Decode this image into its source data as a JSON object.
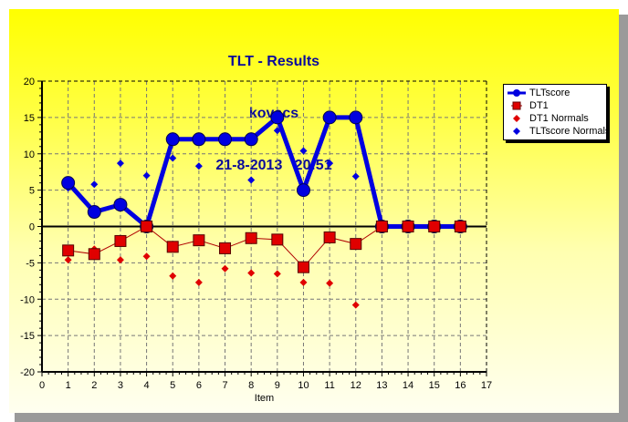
{
  "chart_data": {
    "type": "line",
    "title": "TLT - Results",
    "subtitle_lines": [
      "kovacs",
      "21-8-2013   20:51"
    ],
    "xlabel": "Item",
    "ylabel": "",
    "xlim": [
      0,
      17
    ],
    "ylim": [
      -20,
      20
    ],
    "x_ticks": [
      0,
      1,
      2,
      3,
      4,
      5,
      6,
      7,
      8,
      9,
      10,
      11,
      12,
      13,
      14,
      15,
      16,
      17
    ],
    "y_ticks": [
      20,
      15,
      10,
      5,
      0,
      -5,
      -10,
      -15,
      -20
    ],
    "grid": true,
    "legend_position": "right",
    "x": [
      1,
      2,
      3,
      4,
      5,
      6,
      7,
      8,
      9,
      10,
      11,
      12,
      13,
      14,
      15,
      16
    ],
    "series": [
      {
        "name": "TLTscore",
        "style": "line+circle",
        "color": "#0000e0",
        "values": [
          6,
          2,
          3,
          0,
          12,
          12,
          12,
          12,
          15,
          5,
          15,
          15,
          0,
          0,
          0,
          0
        ]
      },
      {
        "name": "DT1",
        "style": "line+square",
        "color": "#e00000",
        "values": [
          -3.3,
          -3.8,
          -2.0,
          0,
          -2.8,
          -1.9,
          -3.0,
          -1.6,
          -1.8,
          -5.6,
          -1.5,
          -2.4,
          0,
          0,
          0,
          0
        ]
      },
      {
        "name": "DT1 Normals",
        "style": "diamond",
        "color": "#e00000",
        "values": [
          -4.6,
          -3.1,
          -4.6,
          -4.1,
          -6.8,
          -7.7,
          -5.8,
          -6.4,
          -6.5,
          -7.7,
          -7.8,
          -10.8,
          null,
          null,
          null,
          null
        ]
      },
      {
        "name": "TLTscore Normals",
        "style": "diamond",
        "color": "#0000e0",
        "values": [
          5.3,
          5.8,
          8.7,
          7.0,
          9.4,
          8.3,
          null,
          6.4,
          13.2,
          10.4,
          8.7,
          6.9,
          null,
          null,
          null,
          null
        ]
      }
    ]
  },
  "header": {
    "title": "TLT - Results",
    "user": "kovacs",
    "datetime": "21-8-2013   20:51"
  },
  "legend": {
    "items": [
      {
        "label": "TLTscore"
      },
      {
        "label": "DT1"
      },
      {
        "label": "DT1 Normals"
      },
      {
        "label": "TLTscore Normals"
      }
    ]
  },
  "colors": {
    "frame": "#ffff00",
    "title": "#0b0b9b",
    "blue": "#0000e0",
    "red": "#e00000"
  }
}
